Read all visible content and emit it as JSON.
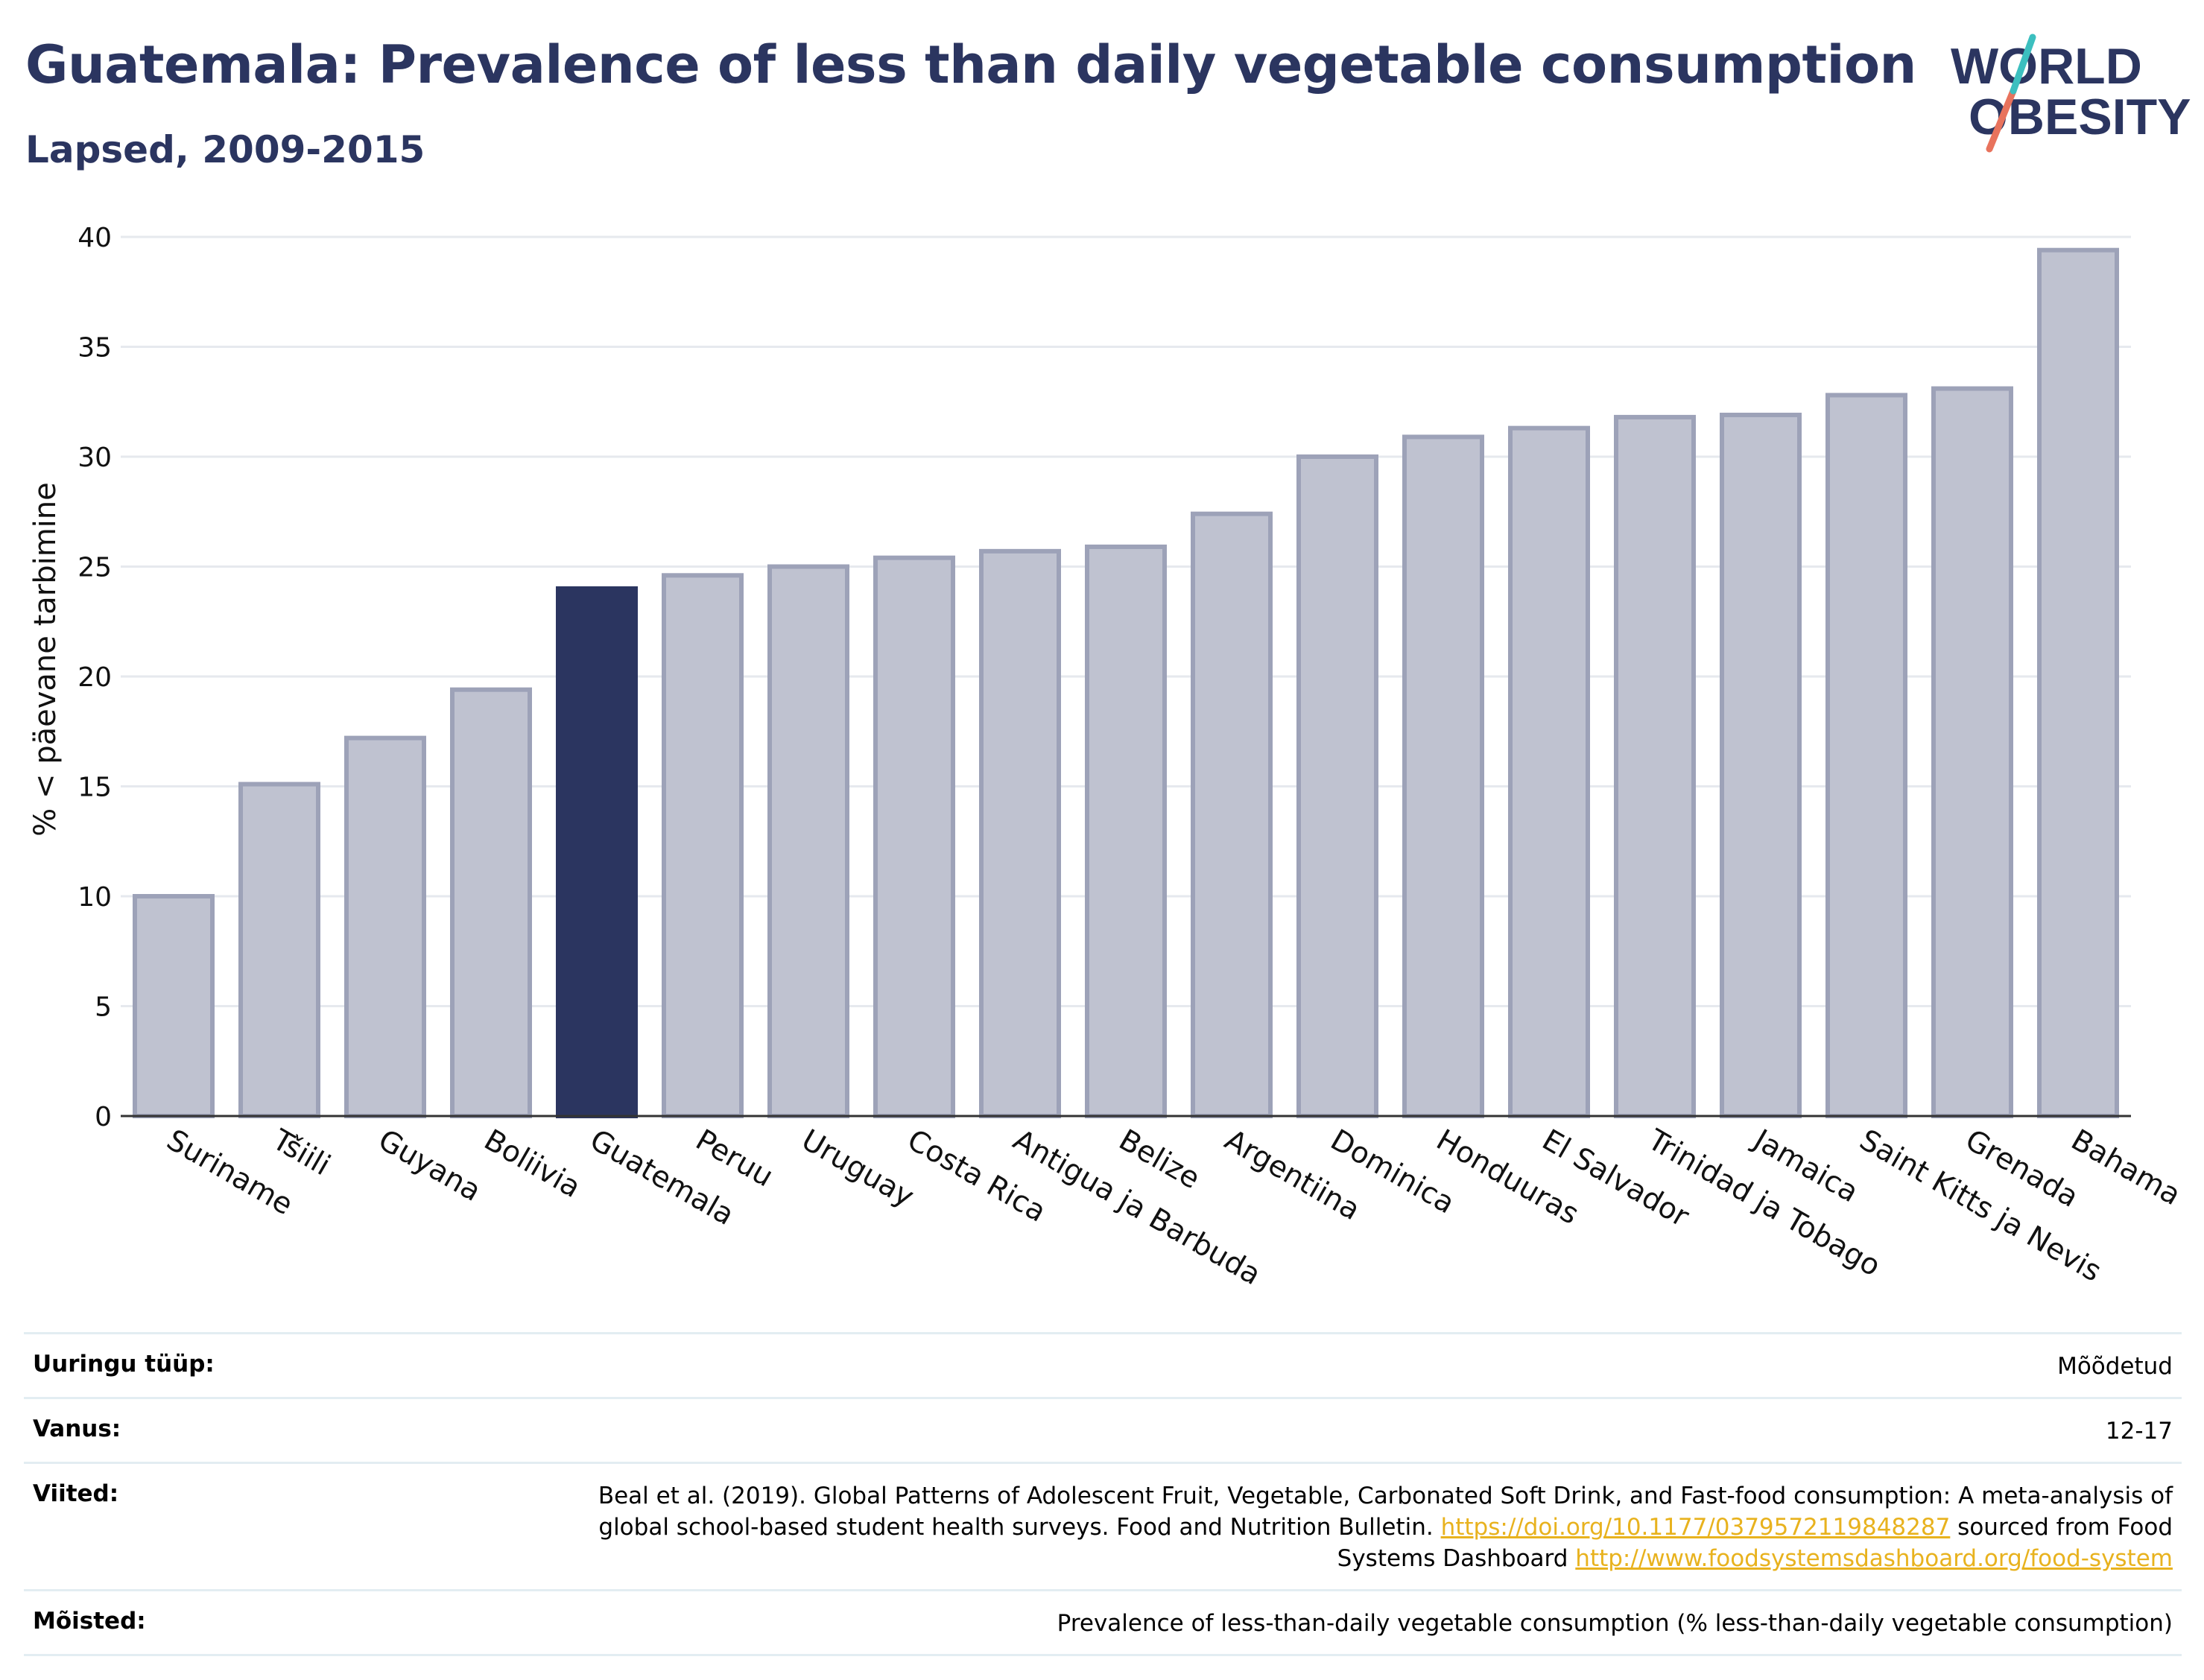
{
  "title": "Guatemala: Prevalence of less than daily vegetable consumption",
  "subtitle": "Lapsed, 2009-2015",
  "logo": {
    "line1": "WORLD",
    "line2": "OBESITY"
  },
  "colors": {
    "highlight": "#2b3560",
    "bar": "#bfc2d0",
    "bar_border": "#9da2b8",
    "title": "#2b3560",
    "link": "#e8b21e"
  },
  "chart_data": {
    "type": "bar",
    "ylabel": "% < päevane tarbimine",
    "ylim": [
      0,
      40
    ],
    "yticks": [
      0,
      5,
      10,
      15,
      20,
      25,
      30,
      35,
      40
    ],
    "grid": true,
    "highlight": "Guatemala",
    "categories": [
      "Suriname",
      "Tšiili",
      "Guyana",
      "Boliivia",
      "Guatemala",
      "Peruu",
      "Uruguay",
      "Costa Rica",
      "Antigua ja Barbuda",
      "Belize",
      "Argentiina",
      "Dominica",
      "Honduuras",
      "El Salvador",
      "Trinidad ja Tobago",
      "Jamaica",
      "Saint Kitts ja Nevis",
      "Grenada",
      "Bahama"
    ],
    "values": [
      10.0,
      15.1,
      17.2,
      19.4,
      24.0,
      24.6,
      25.0,
      25.4,
      25.7,
      25.9,
      27.4,
      30.0,
      30.9,
      31.3,
      31.8,
      31.9,
      32.8,
      33.1,
      39.4
    ]
  },
  "meta": {
    "survey_type": {
      "label": "Uuringu tüüp:",
      "value": "Mõõdetud"
    },
    "age": {
      "label": "Vanus:",
      "value": "12-17"
    },
    "references": {
      "label": "Viited:",
      "text1": "Beal et al. (2019). Global Patterns of Adolescent Fruit, Vegetable, Carbonated Soft Drink, and Fast-food consumption: A meta-analysis of global school-based student health surveys. Food and Nutrition Bulletin. ",
      "link1": "https://doi.org/10.1177/0379572119848287",
      "text2": " sourced from Food Systems Dashboard ",
      "link2": "http://www.foodsystemsdashboard.org/food-system"
    },
    "definitions": {
      "label": "Mõisted:",
      "value": "Prevalence of less-than-daily vegetable consumption (% less-than-daily vegetable consumption)"
    }
  }
}
